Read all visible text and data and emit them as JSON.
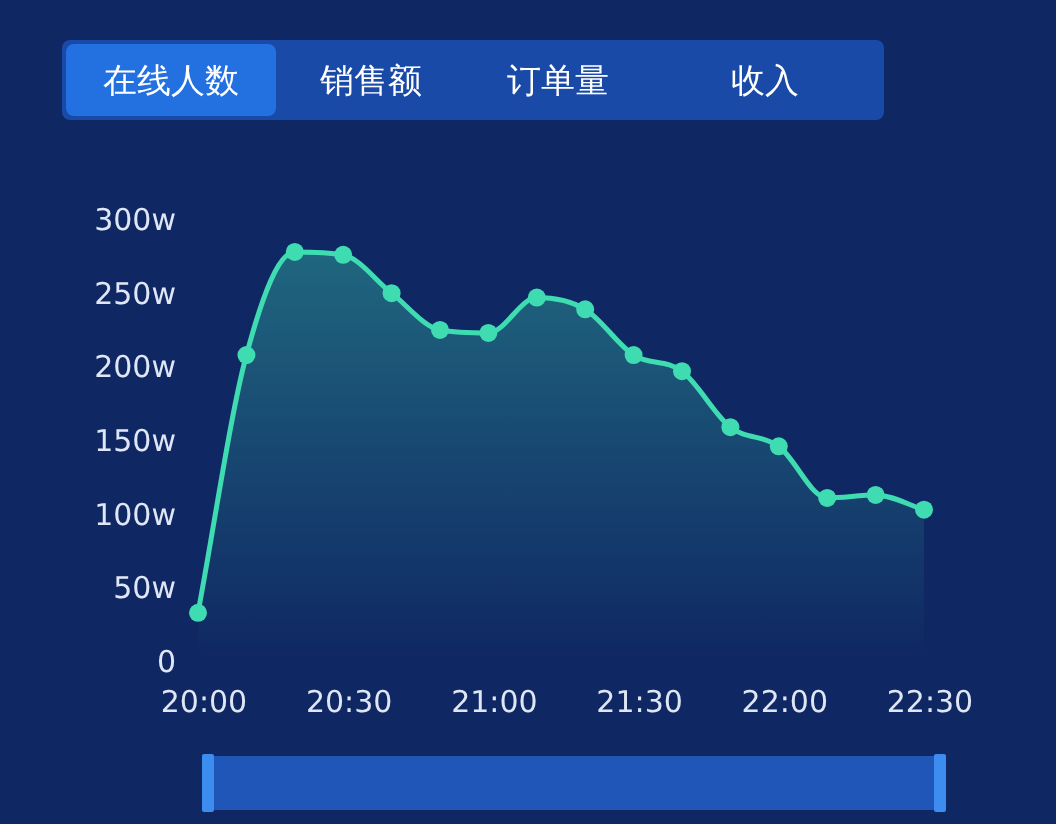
{
  "chart_data": {
    "type": "area",
    "title": "在线人数",
    "annotations": [
      "销售额",
      "订单量",
      "收入"
    ],
    "x": [
      20,
      20.1667,
      20.3333,
      20.5,
      20.6667,
      20.8333,
      21,
      21.1667,
      21.3333,
      21.5,
      21.6667,
      21.8333,
      22,
      22.1667,
      22.3333,
      22.5
    ],
    "values": [
      32,
      207,
      277,
      275,
      249,
      224,
      222,
      246,
      238,
      207,
      196,
      158,
      145,
      110,
      112,
      102
    ],
    "color": "#3fdcb2",
    "xlim": [
      20,
      22.5
    ],
    "xticks": [
      {
        "value": 20,
        "label": "20:00"
      },
      {
        "value": 20.5,
        "label": "20:30"
      },
      {
        "value": 21,
        "label": "21:00"
      },
      {
        "value": 21.5,
        "label": "21:30"
      },
      {
        "value": 22,
        "label": "22:00"
      },
      {
        "value": 22.5,
        "label": "22:30"
      }
    ],
    "ylim": [
      0,
      300
    ],
    "yticks": [
      0,
      {
        "value": 50,
        "label": "50w"
      },
      {
        "value": 100,
        "label": "100w"
      },
      {
        "value": 150,
        "label": "150w"
      },
      {
        "value": 200,
        "label": "200w"
      },
      {
        "value": 250,
        "label": "250w"
      },
      {
        "value": 300,
        "label": "300w"
      }
    ],
    "marker": "circle"
  }
}
